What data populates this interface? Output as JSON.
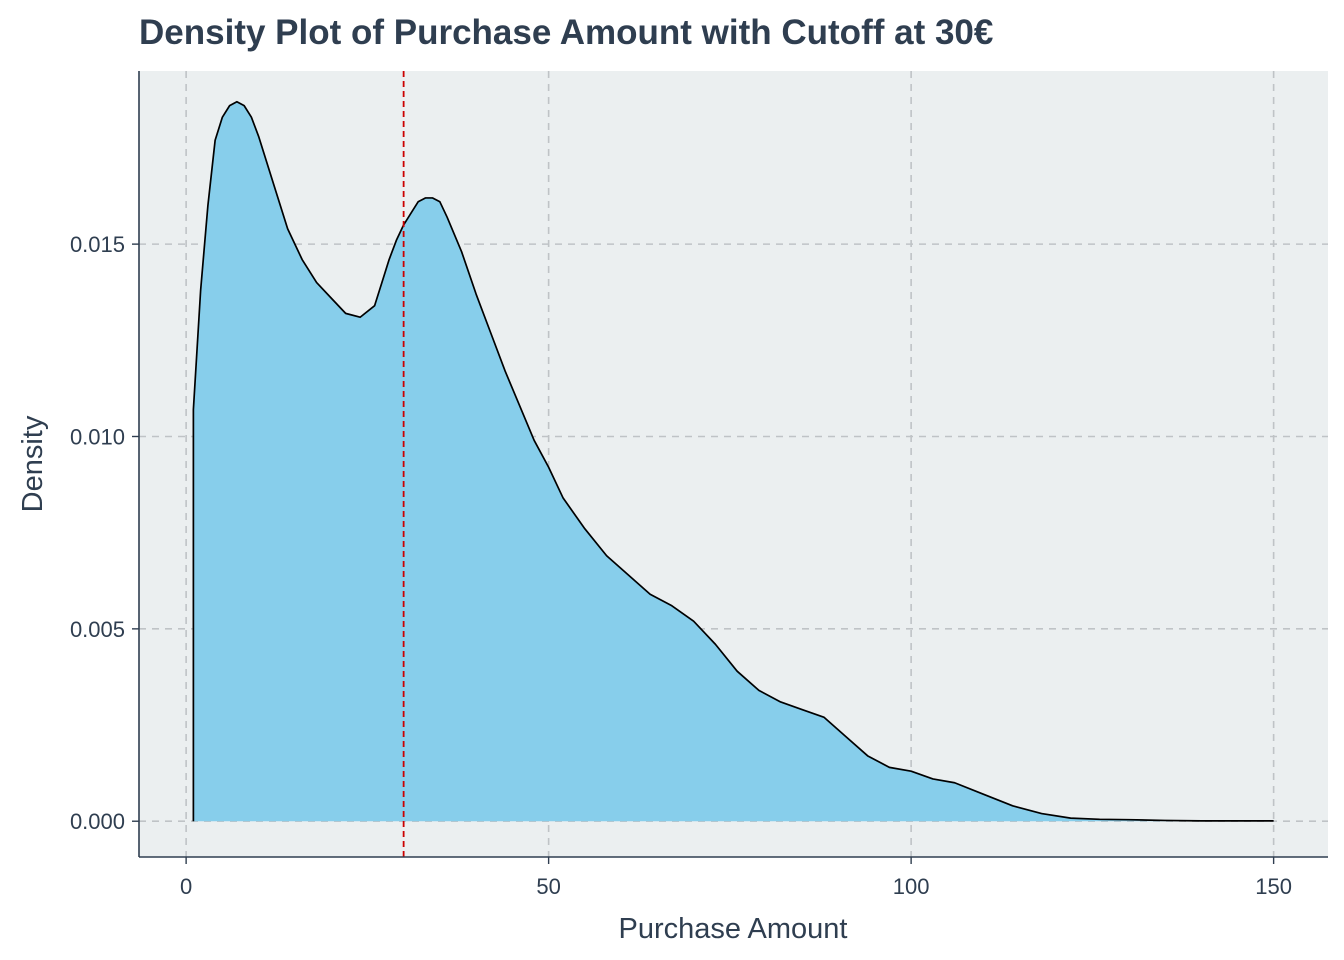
{
  "chart_data": {
    "type": "area",
    "title": "Density Plot of Purchase Amount with Cutoff at 30€",
    "xlabel": "Purchase Amount",
    "ylabel": "Density",
    "xlim": [
      -6.5,
      157.5
    ],
    "ylim": [
      -0.00093,
      0.0195
    ],
    "x_ticks": [
      0,
      50,
      100,
      150
    ],
    "x_tick_labels": [
      "0",
      "50",
      "100",
      "150"
    ],
    "y_ticks": [
      0.0,
      0.005,
      0.01,
      0.015
    ],
    "y_tick_labels": [
      "0.000",
      "0.005",
      "0.010",
      "0.015"
    ],
    "grid": true,
    "legend": "none",
    "cutoff": {
      "x": 30
    },
    "series": [
      {
        "x": [
          1,
          2,
          3,
          4,
          5,
          6,
          7,
          8,
          9,
          10,
          12,
          14,
          16,
          18,
          20,
          22,
          24,
          26,
          27,
          28,
          29,
          30,
          31,
          32,
          33,
          34,
          35,
          36,
          38,
          40,
          42,
          44,
          46,
          48,
          50,
          52,
          55,
          58,
          61,
          64,
          67,
          70,
          73,
          76,
          79,
          82,
          85,
          88,
          91,
          94,
          97,
          100,
          103,
          106,
          110,
          114,
          118,
          122,
          126,
          130,
          135,
          140,
          145,
          150
        ],
        "values": [
          0.0107,
          0.0138,
          0.016,
          0.0177,
          0.0183,
          0.0186,
          0.0187,
          0.0186,
          0.0183,
          0.0178,
          0.0166,
          0.0154,
          0.0146,
          0.014,
          0.0136,
          0.0132,
          0.0131,
          0.0134,
          0.014,
          0.0146,
          0.0151,
          0.0155,
          0.0158,
          0.0161,
          0.0162,
          0.0162,
          0.0161,
          0.0157,
          0.0148,
          0.0137,
          0.0127,
          0.0117,
          0.0108,
          0.0099,
          0.0092,
          0.0084,
          0.0076,
          0.0069,
          0.0064,
          0.0059,
          0.0056,
          0.0052,
          0.0046,
          0.0039,
          0.0034,
          0.0031,
          0.0029,
          0.0027,
          0.0022,
          0.0017,
          0.0014,
          0.0013,
          0.0011,
          0.001,
          0.0007,
          0.0004,
          0.0002,
          8e-05,
          5e-05,
          4e-05,
          2e-05,
          1e-05,
          1e-05,
          1e-05
        ]
      }
    ],
    "colors": {
      "fill": "#87ceeb",
      "outline": "#000000",
      "cutoff": "#cc0000",
      "panel": "#ebeff0",
      "text": "#2f3e50",
      "grid": "#bfc3c6"
    }
  }
}
